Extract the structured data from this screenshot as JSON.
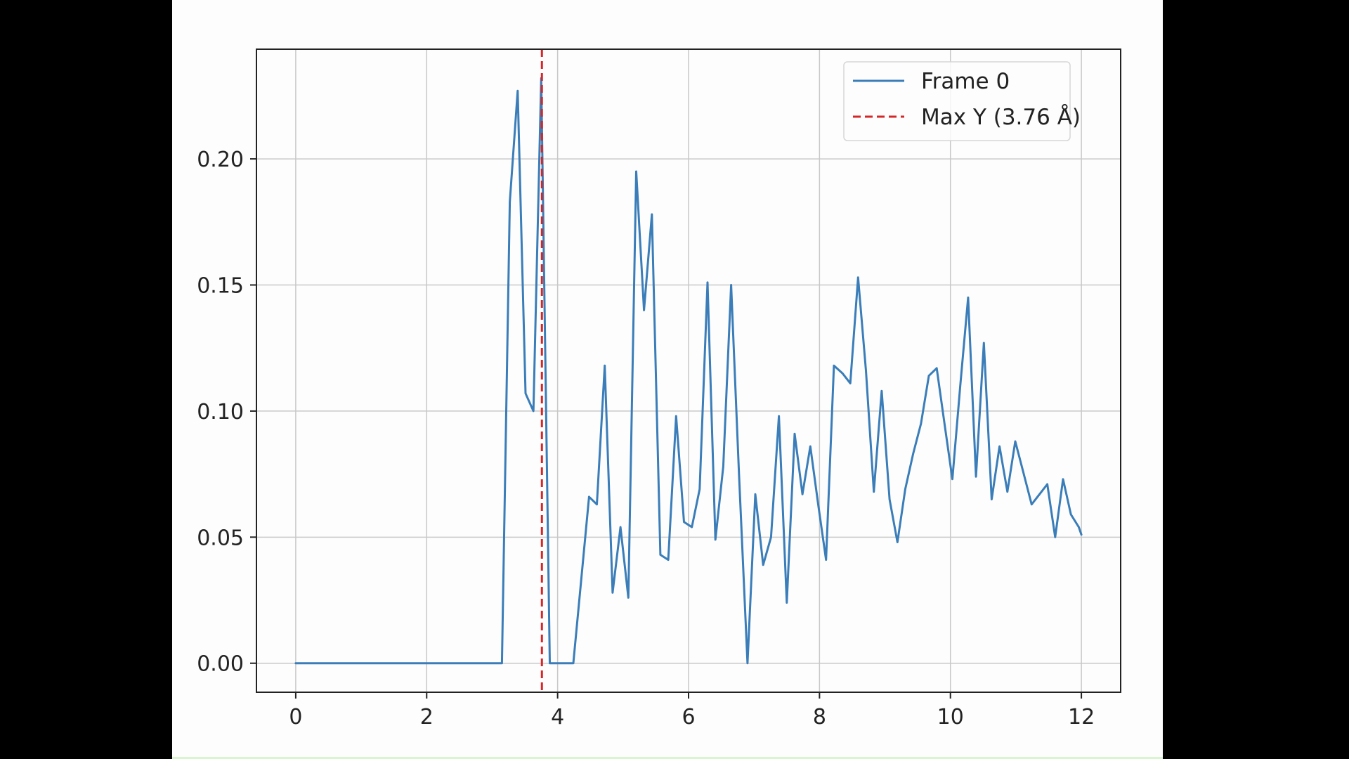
{
  "colors": {
    "series": "#3a7db8",
    "marker_line": "#d62728",
    "grid": "#c8c8c8",
    "axes": "#222222",
    "background": "#fdfdfd"
  },
  "chart_data": {
    "type": "line",
    "xlim": [
      -0.6,
      12.6
    ],
    "ylim": [
      -0.0115,
      0.2435
    ],
    "xticks": [
      0,
      2,
      4,
      6,
      8,
      10,
      12
    ],
    "yticks": [
      0.0,
      0.05,
      0.1,
      0.15,
      0.2
    ],
    "xtick_labels": [
      "0",
      "2",
      "4",
      "6",
      "8",
      "10",
      "12"
    ],
    "ytick_labels": [
      "0.00",
      "0.05",
      "0.10",
      "0.15",
      "0.20"
    ],
    "grid": true,
    "legend": {
      "location": "top-right",
      "entries": [
        {
          "label": "Frame 0",
          "style": "solid",
          "color": "#3a7db8"
        },
        {
          "label": "Max Y (3.76 Å)",
          "style": "dashed",
          "color": "#d62728"
        }
      ]
    },
    "vline": {
      "x": 3.76,
      "color": "#d62728",
      "style": "dashed"
    },
    "series": [
      {
        "name": "Frame 0",
        "color": "#3a7db8",
        "x": [
          0.0,
          3.15,
          3.27,
          3.39,
          3.51,
          3.63,
          3.75,
          3.88,
          4.0,
          4.12,
          4.24,
          4.36,
          4.48,
          4.6,
          4.72,
          4.84,
          4.96,
          5.08,
          5.2,
          5.32,
          5.44,
          5.57,
          5.69,
          5.81,
          5.93,
          6.05,
          6.17,
          6.29,
          6.41,
          6.53,
          6.65,
          6.77,
          6.9,
          7.02,
          7.14,
          7.26,
          7.38,
          7.5,
          7.62,
          7.74,
          7.86,
          7.98,
          8.1,
          8.22,
          8.35,
          8.47,
          8.59,
          8.71,
          8.83,
          8.95,
          9.07,
          9.19,
          9.31,
          9.43,
          9.55,
          9.67,
          9.79,
          9.91,
          10.03,
          10.15,
          10.27,
          10.39,
          10.51,
          10.63,
          10.75,
          10.87,
          10.99,
          11.11,
          11.24,
          11.36,
          11.48,
          11.6,
          11.72,
          11.84,
          11.96,
          12.0
        ],
        "y": [
          0.0,
          0.0,
          0.183,
          0.227,
          0.107,
          0.1,
          0.232,
          0.0,
          0.0,
          0.0,
          0.0,
          0.033,
          0.066,
          0.063,
          0.118,
          0.028,
          0.054,
          0.026,
          0.195,
          0.14,
          0.178,
          0.043,
          0.041,
          0.098,
          0.056,
          0.054,
          0.069,
          0.151,
          0.049,
          0.078,
          0.15,
          0.075,
          0.0,
          0.067,
          0.039,
          0.05,
          0.098,
          0.024,
          0.091,
          0.067,
          0.086,
          0.063,
          0.041,
          0.118,
          0.115,
          0.111,
          0.153,
          0.116,
          0.068,
          0.108,
          0.065,
          0.048,
          0.069,
          0.083,
          0.095,
          0.114,
          0.117,
          0.095,
          0.073,
          0.11,
          0.145,
          0.074,
          0.127,
          0.065,
          0.086,
          0.068,
          0.088,
          0.076,
          0.063,
          0.067,
          0.071,
          0.05,
          0.073,
          0.059,
          0.054,
          0.051
        ]
      }
    ]
  }
}
